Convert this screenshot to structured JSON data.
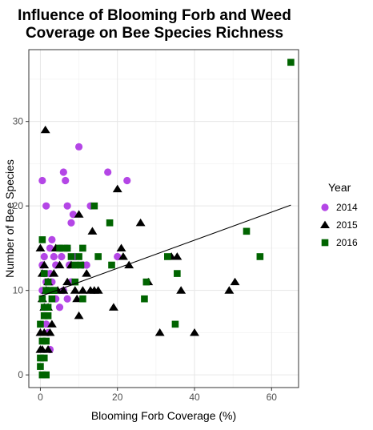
{
  "chart_data": {
    "type": "scatter",
    "title": [
      "Influence of Blooming Forb and Weed",
      "Coverage on Bee Species Richness"
    ],
    "xlabel": "Blooming Forb Coverage (%)",
    "ylabel": "Number of Bee Species",
    "xlim": [
      -3,
      67
    ],
    "ylim": [
      -1.5,
      38.5
    ],
    "xticks": [
      0,
      20,
      40,
      60
    ],
    "yticks": [
      0,
      10,
      20,
      30
    ],
    "grid": true,
    "legend": {
      "title": "Year",
      "position": "right",
      "entries": [
        {
          "label": "2014",
          "color": "#b446e6",
          "shape": "circle"
        },
        {
          "label": "2015",
          "color": "#000000",
          "shape": "triangle"
        },
        {
          "label": "2016",
          "color": "#006400",
          "shape": "square"
        }
      ]
    },
    "series": [
      {
        "name": "2014",
        "color": "#b446e6",
        "shape": "circle",
        "points": [
          [
            0.5,
            23
          ],
          [
            1.5,
            20
          ],
          [
            2.5,
            15
          ],
          [
            3,
            16
          ],
          [
            3.5,
            14
          ],
          [
            4,
            13
          ],
          [
            5,
            15
          ],
          [
            5.5,
            14
          ],
          [
            6,
            24
          ],
          [
            6.5,
            23
          ],
          [
            7,
            20
          ],
          [
            7.5,
            13
          ],
          [
            8,
            18
          ],
          [
            8.5,
            19
          ],
          [
            9,
            14
          ],
          [
            10,
            27
          ],
          [
            11,
            13
          ],
          [
            12,
            13
          ],
          [
            13,
            20
          ],
          [
            17.5,
            24
          ],
          [
            20,
            14
          ],
          [
            22.5,
            23
          ],
          [
            0.5,
            13
          ],
          [
            1,
            12
          ],
          [
            1.5,
            11
          ],
          [
            2,
            10
          ],
          [
            2.5,
            12
          ],
          [
            3,
            11
          ],
          [
            4,
            9
          ],
          [
            5,
            8
          ],
          [
            6,
            10
          ],
          [
            7,
            9
          ],
          [
            8,
            11
          ],
          [
            1,
            8
          ],
          [
            1.5,
            6
          ],
          [
            2,
            5
          ],
          [
            2.5,
            3
          ],
          [
            1,
            14
          ],
          [
            0.5,
            10
          ],
          [
            7,
            15
          ]
        ]
      },
      {
        "name": "2015",
        "color": "#000000",
        "shape": "triangle",
        "points": [
          [
            1.3,
            29
          ],
          [
            0,
            15
          ],
          [
            0.5,
            12
          ],
          [
            1,
            13
          ],
          [
            2,
            11
          ],
          [
            1.5,
            10
          ],
          [
            0.5,
            9
          ],
          [
            1,
            8
          ],
          [
            2,
            8
          ],
          [
            0,
            5
          ],
          [
            1,
            5
          ],
          [
            0.5,
            3
          ],
          [
            0,
            3
          ],
          [
            2.5,
            5
          ],
          [
            3,
            6
          ],
          [
            3.5,
            12
          ],
          [
            4,
            15
          ],
          [
            4.5,
            10
          ],
          [
            5,
            13
          ],
          [
            6,
            10
          ],
          [
            7,
            11
          ],
          [
            8,
            13
          ],
          [
            9,
            10
          ],
          [
            9.5,
            9
          ],
          [
            10,
            19
          ],
          [
            10,
            7
          ],
          [
            11,
            10
          ],
          [
            12,
            12
          ],
          [
            13,
            10
          ],
          [
            13.5,
            17
          ],
          [
            14,
            10
          ],
          [
            15,
            10
          ],
          [
            19,
            8
          ],
          [
            20,
            22
          ],
          [
            21,
            15
          ],
          [
            21.5,
            14
          ],
          [
            23,
            13
          ],
          [
            26,
            18
          ],
          [
            28,
            11
          ],
          [
            31,
            5
          ],
          [
            34,
            14
          ],
          [
            35.5,
            14
          ],
          [
            36.5,
            10
          ],
          [
            40,
            5
          ],
          [
            49,
            10
          ],
          [
            50.5,
            11
          ],
          [
            2,
            3
          ]
        ]
      },
      {
        "name": "2016",
        "color": "#006400",
        "shape": "square",
        "points": [
          [
            0.5,
            16
          ],
          [
            1,
            12
          ],
          [
            1.5,
            10
          ],
          [
            2,
            11
          ],
          [
            0.5,
            9
          ],
          [
            1,
            8
          ],
          [
            0,
            6
          ],
          [
            1,
            7
          ],
          [
            0.5,
            4
          ],
          [
            1.5,
            4
          ],
          [
            0,
            2
          ],
          [
            0.5,
            0
          ],
          [
            1.5,
            0
          ],
          [
            2,
            7
          ],
          [
            2.5,
            10
          ],
          [
            3,
            9
          ],
          [
            3.5,
            10
          ],
          [
            5,
            15
          ],
          [
            6,
            15
          ],
          [
            7,
            15
          ],
          [
            8,
            14
          ],
          [
            9,
            13
          ],
          [
            9,
            11
          ],
          [
            10,
            14
          ],
          [
            10.5,
            13
          ],
          [
            11,
            15
          ],
          [
            11,
            9
          ],
          [
            14,
            20
          ],
          [
            15,
            14
          ],
          [
            18,
            18
          ],
          [
            18.5,
            13
          ],
          [
            27,
            9
          ],
          [
            27.5,
            11
          ],
          [
            33,
            14
          ],
          [
            35,
            6
          ],
          [
            35.5,
            12
          ],
          [
            53.5,
            17
          ],
          [
            57,
            14
          ],
          [
            65,
            37
          ],
          [
            2,
            8
          ],
          [
            0,
            1
          ],
          [
            1,
            2
          ]
        ]
      }
    ],
    "trendline": {
      "x": [
        0,
        65
      ],
      "y": [
        9.3,
        20.1
      ],
      "color": "#000000"
    }
  }
}
